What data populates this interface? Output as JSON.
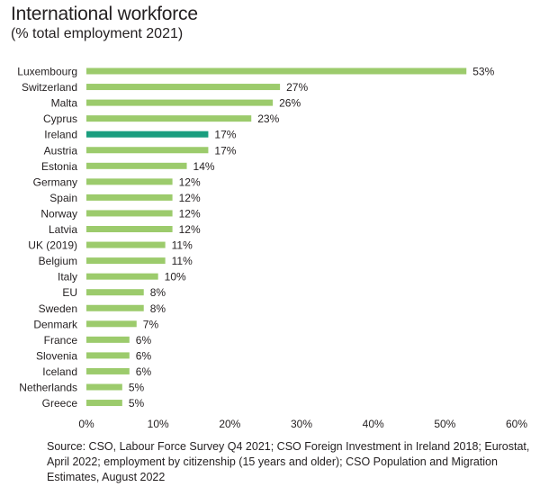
{
  "chart_data": {
    "type": "bar",
    "orientation": "horizontal",
    "title": "International workforce",
    "subtitle": "(% total employment 2021)",
    "categories": [
      "Luxembourg",
      "Switzerland",
      "Malta",
      "Cyprus",
      "Ireland",
      "Austria",
      "Estonia",
      "Germany",
      "Spain",
      "Norway",
      "Latvia",
      "UK (2019)",
      "Belgium",
      "Italy",
      "EU",
      "Sweden",
      "Denmark",
      "France",
      "Slovenia",
      "Iceland",
      "Netherlands",
      "Greece"
    ],
    "values": [
      53,
      27,
      26,
      23,
      17,
      17,
      14,
      12,
      12,
      12,
      12,
      11,
      11,
      10,
      8,
      8,
      7,
      6,
      6,
      6,
      5,
      5
    ],
    "value_labels": [
      "53%",
      "27%",
      "26%",
      "23%",
      "17%",
      "17%",
      "14%",
      "12%",
      "12%",
      "12%",
      "12%",
      "11%",
      "11%",
      "10%",
      "8%",
      "8%",
      "7%",
      "6%",
      "6%",
      "6%",
      "5%",
      "5%"
    ],
    "highlight": "Ireland",
    "xlim": [
      0,
      60
    ],
    "x_ticks": [
      "0%",
      "10%",
      "20%",
      "30%",
      "40%",
      "50%",
      "60%"
    ],
    "x_tick_values": [
      0,
      10,
      20,
      30,
      40,
      50,
      60
    ],
    "grid": false,
    "colors": {
      "bar": "#9ccb6c",
      "highlight": "#1a9e7f"
    }
  },
  "source": "Source: CSO, Labour Force Survey Q4 2021; CSO Foreign Investment in Ireland 2018; Eurostat, April 2022; employment by citizenship (15 years and older); CSO Population and Migration Estimates, August 2022"
}
